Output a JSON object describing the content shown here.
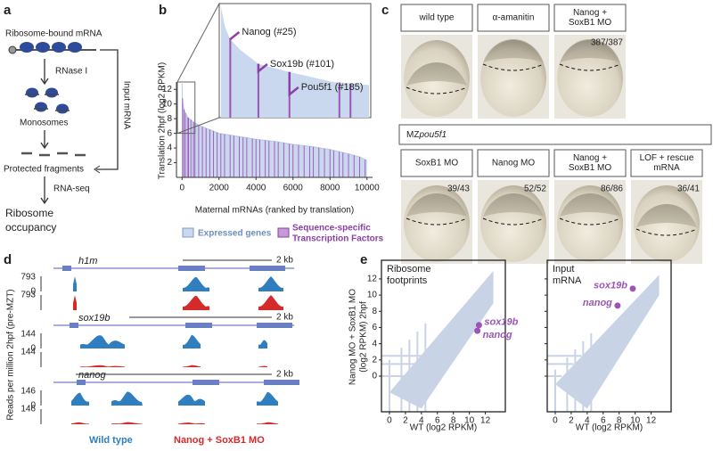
{
  "panel_a": {
    "label": "a",
    "steps": [
      "Ribosome-bound mRNA",
      "RNase I",
      "Monosomes",
      "Protected fragments",
      "RNA-seq"
    ],
    "outcome": [
      "Ribosome",
      "occupancy"
    ],
    "side": "Input mRNA"
  },
  "panel_b": {
    "label": "b",
    "ylabel": "Translation 2hpf (log2 RPKM)",
    "xlabel": "Maternal mRNAs (ranked by translation)",
    "xlim": [
      -300,
      10300
    ],
    "xticks": [
      0,
      2000,
      4000,
      6000,
      8000,
      10000
    ],
    "ylim": [
      0,
      13
    ],
    "yticks": [
      2,
      4,
      6,
      8,
      10,
      12
    ],
    "curve": {
      "x": [
        0,
        10,
        25,
        50,
        101,
        185,
        300,
        400,
        700,
        1000,
        2000,
        3000,
        4000,
        5000,
        6000,
        7000,
        8000,
        9000,
        9600,
        10000
      ],
      "values": [
        12.8,
        11.6,
        10.8,
        10.2,
        9.3,
        8.8,
        8.2,
        8,
        7.4,
        7,
        6,
        5.6,
        5.2,
        4.9,
        4.5,
        4.2,
        3.8,
        3.2,
        2.8,
        2.3
      ]
    },
    "tf_ranks": [
      25,
      101,
      185,
      320,
      350,
      480,
      620,
      700,
      900,
      1100,
      1300,
      1500,
      1700,
      1900,
      2100,
      2300,
      2600,
      2800,
      3100,
      3300,
      3500,
      3800,
      4000,
      4200,
      4500,
      4700,
      5000,
      5200,
      5500,
      5800,
      6000,
      6300,
      6600,
      6900,
      7100,
      7400,
      7700,
      8000,
      8200,
      8500,
      8700,
      9000,
      9300,
      9600,
      9900
    ],
    "annotations": [
      {
        "label": "Nanog (#25)",
        "rank": 25
      },
      {
        "label": "Sox19b (#101)",
        "rank": 101
      },
      {
        "label": "Pou5f1 (#185)",
        "rank": 185
      }
    ],
    "legend": {
      "expressed": "Expressed genes",
      "tf": [
        "Sequence-specific",
        "Transcription Factors"
      ]
    }
  },
  "panel_c": {
    "label": "c",
    "top": [
      {
        "name": "wild type",
        "count": null
      },
      {
        "name": "α-amanitin",
        "count": null
      },
      {
        "name": [
          "Nanog +",
          "SoxB1 MO"
        ],
        "count": "387/387"
      }
    ],
    "group": {
      "prefix": "MZ",
      "gene": "pou5f1"
    },
    "bottom": [
      {
        "name": [
          "SoxB1 MO"
        ],
        "count": "39/43"
      },
      {
        "name": [
          "Nanog MO"
        ],
        "count": "52/52"
      },
      {
        "name": [
          "Nanog +",
          "SoxB1 MO"
        ],
        "count": "86/86"
      },
      {
        "name": [
          "LOF + rescue",
          "mRNA"
        ],
        "count": "36/41"
      }
    ]
  },
  "panel_d": {
    "label": "d",
    "ylabel": "Reads per million 2hpf (pre-MZT)",
    "genes": [
      {
        "name": "h1m",
        "scale": "2 kb",
        "ticks": [
          793,
          0,
          793
        ]
      },
      {
        "name": "sox19b",
        "scale": "2 kb",
        "ticks": [
          144,
          0,
          144
        ]
      },
      {
        "name": "nanog",
        "scale": "2 kb",
        "ticks": [
          146,
          0,
          146
        ]
      }
    ],
    "legend": [
      "Wild type",
      "Nanog + SoxB1 MO"
    ]
  },
  "panel_e": {
    "label": "e",
    "xlim": [
      -1,
      14.5
    ],
    "ylim": [
      -4.4,
      14.3
    ],
    "xticks": [
      0,
      2,
      4,
      6,
      8,
      10,
      12
    ],
    "yticks": [
      0,
      2,
      4,
      6,
      8,
      10,
      12
    ],
    "xlabel": "WT (log2 RPKM)",
    "ylabel": [
      "Nanog MO + SoxB1 MO",
      "(log2 RPKM)  2hpf"
    ],
    "plots": [
      {
        "title": [
          "Ribosome",
          "footprints"
        ],
        "points": [
          {
            "label": "sox19b",
            "x": 11.2,
            "y": 6.3
          },
          {
            "label": "nanog",
            "x": 11,
            "y": 5.6
          }
        ]
      },
      {
        "title": [
          "Input",
          "mRNA"
        ],
        "points": [
          {
            "label": "sox19b",
            "x": 9.7,
            "y": 10.8
          },
          {
            "label": "nanog",
            "x": 7.8,
            "y": 8.7
          }
        ]
      }
    ]
  }
}
